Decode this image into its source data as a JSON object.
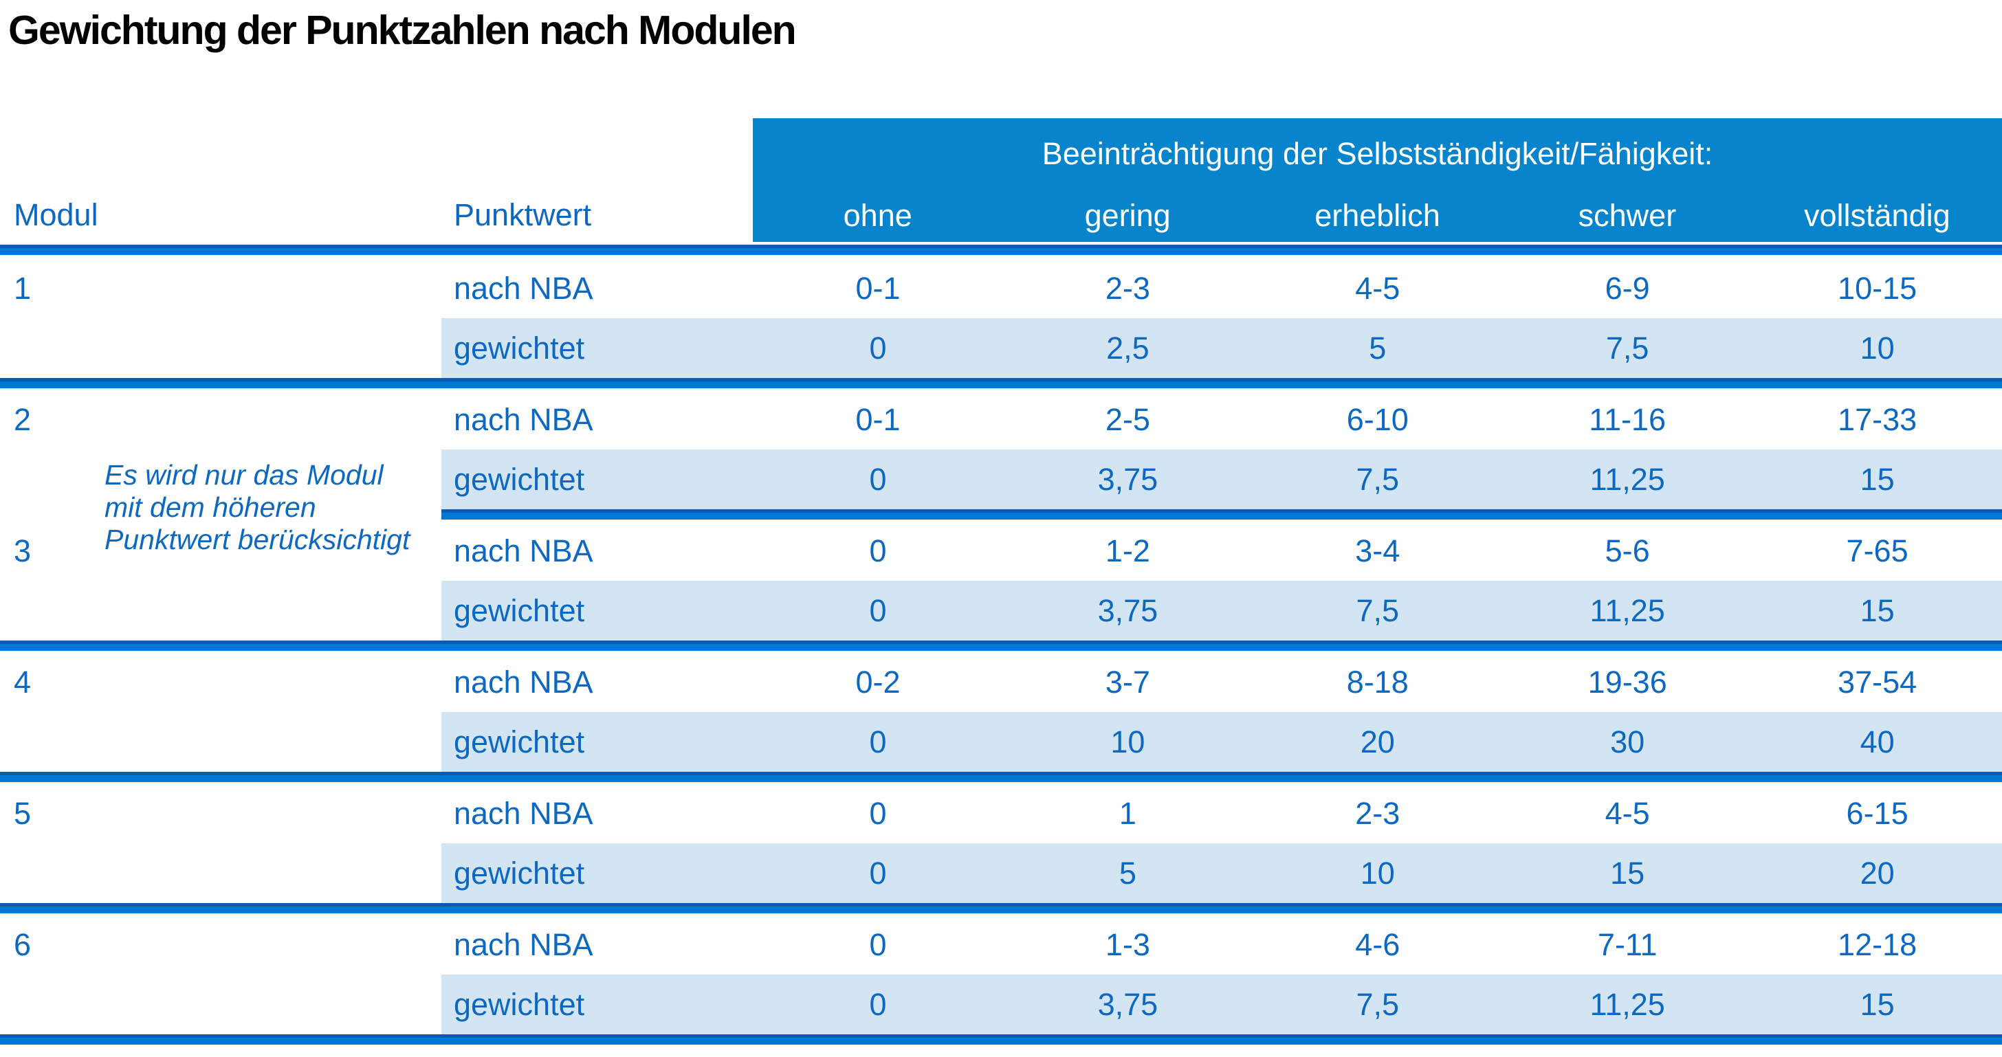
{
  "title": "Gewichtung der Punktzahlen nach Modulen",
  "table": {
    "col_headers": {
      "modul": "Modul",
      "punktwert": "Punktwert"
    },
    "impairment_header": "Beeinträchtigung der Selbstständigkeit/Fähigkeit:",
    "severity_levels": [
      "ohne",
      "gering",
      "erheblich",
      "schwer",
      "vollständig"
    ],
    "row_labels": {
      "nba": "nach NBA",
      "weighted": "gewichtet"
    },
    "note": "Es wird nur das Modul mit dem höheren Punktwert berücksichtigt",
    "note_lines": [
      "Es wird nur das Modul",
      "mit dem höheren",
      "Punktwert berücksichtigt"
    ],
    "modules": [
      {
        "id": "1",
        "nba": [
          "0-1",
          "2-3",
          "4-5",
          "6-9",
          "10-15"
        ],
        "weighted": [
          "0",
          "2,5",
          "5",
          "7,5",
          "10"
        ]
      },
      {
        "id": "2",
        "nba": [
          "0-1",
          "2-5",
          "6-10",
          "11-16",
          "17-33"
        ],
        "weighted": [
          "0",
          "3,75",
          "7,5",
          "11,25",
          "15"
        ]
      },
      {
        "id": "3",
        "nba": [
          "0",
          "1-2",
          "3-4",
          "5-6",
          "7-65"
        ],
        "weighted": [
          "0",
          "3,75",
          "7,5",
          "11,25",
          "15"
        ]
      },
      {
        "id": "4",
        "nba": [
          "0-2",
          "3-7",
          "8-18",
          "19-36",
          "37-54"
        ],
        "weighted": [
          "0",
          "10",
          "20",
          "30",
          "40"
        ]
      },
      {
        "id": "5",
        "nba": [
          "0",
          "1",
          "2-3",
          "4-5",
          "6-15"
        ],
        "weighted": [
          "0",
          "5",
          "10",
          "15",
          "20"
        ]
      },
      {
        "id": "6",
        "nba": [
          "0",
          "1-3",
          "4-6",
          "7-11",
          "12-18"
        ],
        "weighted": [
          "0",
          "3,75",
          "7,5",
          "11,25",
          "15"
        ]
      }
    ]
  },
  "colors": {
    "header_fill": "#0884cd",
    "row_fill": "#d3e5f3",
    "text_blue": "#0d68c1",
    "bar_bright": "#0079d6",
    "bar_dark": "#0b5cb0",
    "title_color": "#000000"
  }
}
